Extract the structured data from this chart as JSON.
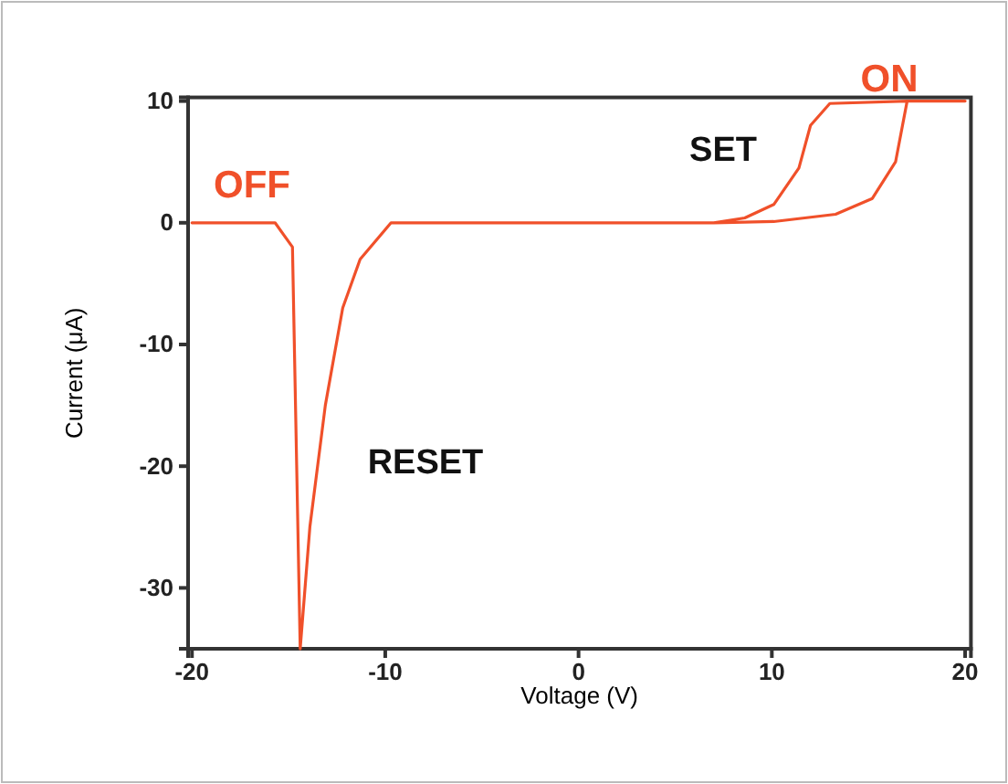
{
  "chart_data": {
    "type": "line",
    "xlabel": "Voltage (V)",
    "ylabel": "Current (μA)",
    "xlim": [
      -20.2,
      20.3
    ],
    "ylim": [
      -35,
      10.3
    ],
    "xticks": [
      -20,
      -10,
      0,
      10,
      20
    ],
    "yticks": [
      -30,
      -20,
      -10,
      0,
      10
    ],
    "grid": false,
    "marker": "none",
    "line_style": "solid",
    "series": [
      {
        "color": "#f0502a",
        "x": [
          -20,
          -15.7,
          -14.8,
          -14.4,
          -13.9,
          -13.1,
          -12.2,
          -11.3,
          -9.7,
          7,
          8.6,
          10.1,
          11.4,
          12,
          13,
          17,
          20,
          17,
          16.4,
          15.2,
          13.3,
          10.1,
          7
        ],
        "values": [
          0,
          0,
          -2,
          -35,
          -25,
          -15,
          -7,
          -3,
          0,
          0,
          0.4,
          1.5,
          4.5,
          8,
          9.8,
          10,
          10,
          10,
          5,
          2,
          0.7,
          0.1,
          0
        ]
      }
    ],
    "annotations": [
      "OFF",
      "ON",
      "SET",
      "RESET"
    ]
  }
}
